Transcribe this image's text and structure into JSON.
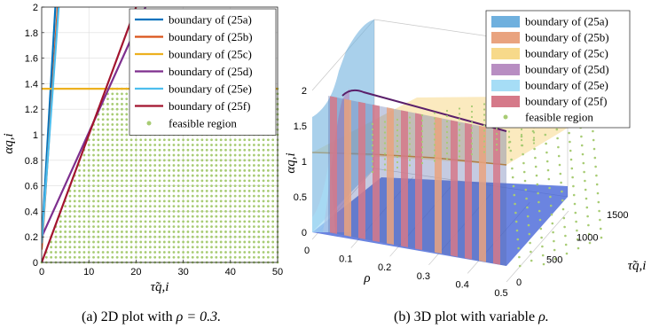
{
  "colors": {
    "b25a": "#0072BD",
    "b25b": "#D95319",
    "b25c": "#EDB120",
    "b25d": "#7E2F8E",
    "b25e": "#4DBEEE",
    "b25f": "#A2142F",
    "feasible": "#A8CC74",
    "surf_a": "#6FB0DE",
    "surf_b": "#E9A37F",
    "surf_c": "#F7D98A",
    "surf_d": "#B88EC2",
    "surf_e": "#A6DDF6",
    "surf_f": "#D57989"
  },
  "captions": {
    "a_prefix": "(a) 2D plot with ",
    "a_math": "ρ = 0.3.",
    "b_prefix": "(b) 3D plot with variable ",
    "b_math": "ρ."
  },
  "chart_data": [
    {
      "type": "line",
      "xlabel": "τ̃q,i",
      "ylabel": "αq,i",
      "xlim": [
        0,
        50
      ],
      "ylim": [
        0,
        2
      ],
      "xticks": [
        "0",
        "10",
        "20",
        "30",
        "40",
        "50"
      ],
      "yticks": [
        "0",
        "0.2",
        "0.4",
        "0.6",
        "0.8",
        "1",
        "1.2",
        "1.4",
        "1.6",
        "1.8",
        "2"
      ],
      "grid": true,
      "legend_position": "top-right",
      "series": [
        {
          "name": "boundary of (25a)",
          "x": [
            0,
            2.9
          ],
          "y": [
            0.16,
            2.0
          ]
        },
        {
          "name": "boundary of (25b)",
          "x": [
            0,
            3.4
          ],
          "y": [
            0.1,
            2.0
          ]
        },
        {
          "name": "boundary of (25c)",
          "x": [
            0,
            50
          ],
          "y": [
            1.36,
            1.36
          ]
        },
        {
          "name": "boundary of (25d)",
          "x": [
            0,
            22
          ],
          "y": [
            0.2,
            2.0
          ]
        },
        {
          "name": "boundary of (25e)",
          "x": [
            0,
            3.6
          ],
          "y": [
            0.15,
            2.0
          ]
        },
        {
          "name": "boundary of (25f)",
          "x": [
            0,
            20
          ],
          "y": [
            0.0,
            2.0
          ]
        }
      ],
      "feasible_region": {
        "name": "feasible region",
        "y_max": 1.36,
        "lower_boundary": {
          "x": [
            0,
            13.6
          ],
          "y": [
            0.0,
            1.36
          ]
        },
        "x_range": [
          0,
          50
        ]
      }
    },
    {
      "type": "surface",
      "xlabel": "ρ",
      "ylabel": "τ̃q,i",
      "zlabel": "αq,i",
      "xlim": [
        0,
        0.5
      ],
      "ylim": [
        0,
        1600
      ],
      "zlim": [
        0,
        2
      ],
      "xticks": [
        "0",
        "0.1",
        "0.2",
        "0.3",
        "0.4",
        "0.5"
      ],
      "yticks": [
        "0",
        "500",
        "1000",
        "1500"
      ],
      "zticks": [
        "0",
        "0.5",
        "1",
        "1.5",
        "2"
      ],
      "legend_position": "top-right",
      "series": [
        {
          "name": "boundary of (25a)"
        },
        {
          "name": "boundary of (25b)"
        },
        {
          "name": "boundary of (25c)"
        },
        {
          "name": "boundary of (25d)"
        },
        {
          "name": "boundary of (25e)"
        },
        {
          "name": "boundary of (25f)"
        },
        {
          "name": "feasible region"
        }
      ]
    }
  ]
}
